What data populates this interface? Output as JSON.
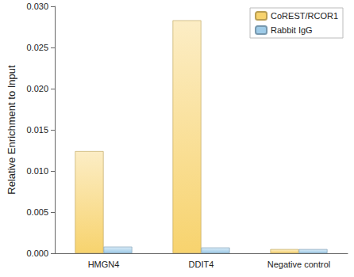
{
  "chart_data": {
    "type": "bar",
    "categories": [
      "HMGN4",
      "DDIT4",
      "Negative control"
    ],
    "series": [
      {
        "name": "CoREST/RCOR1",
        "color": "#f7d36e",
        "values": [
          0.0124,
          0.0283,
          0.0005
        ]
      },
      {
        "name": "Rabbit IgG",
        "color": "#9ecbe8",
        "values": [
          0.0008,
          0.0007,
          0.0005
        ]
      }
    ],
    "ylabel": "Relative Enrichment to Input",
    "ylim": [
      0,
      0.03
    ],
    "yticks": [
      {
        "value": 0,
        "label": "0.000"
      },
      {
        "value": 0.005,
        "label": "0.005"
      },
      {
        "value": 0.01,
        "label": "0.010"
      },
      {
        "value": 0.015,
        "label": "0.015"
      },
      {
        "value": 0.02,
        "label": "0.020"
      },
      {
        "value": 0.025,
        "label": "0.025"
      },
      {
        "value": 0.03,
        "label": "0.030"
      }
    ],
    "grid": false,
    "legend": "upper right"
  }
}
